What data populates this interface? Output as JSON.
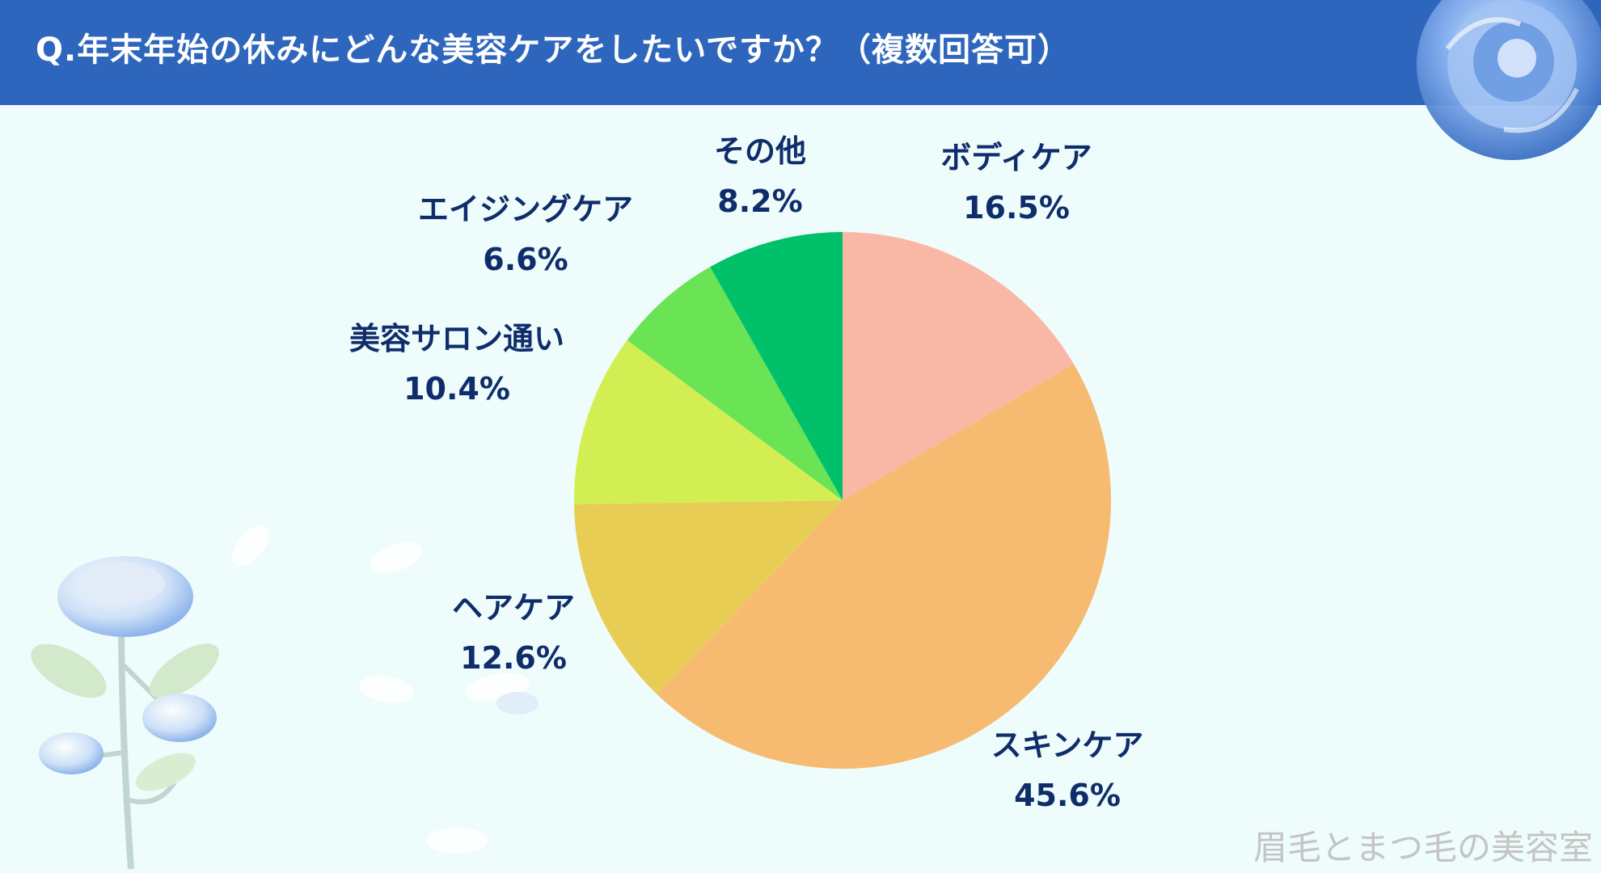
{
  "title": "Q.年末年始の休みにどんな美容ケアをしたいですか？（複数回答可）",
  "watermark": "眉毛とまつ毛の美容室",
  "colors": {
    "header": "#2f66bd",
    "background": "#eefcfb",
    "label": "#0f2d6b"
  },
  "chart_data": {
    "type": "pie",
    "title": "Q.年末年始の休みにどんな美容ケアをしたいですか？（複数回答可）",
    "slices": [
      {
        "label": "ボディケア",
        "value": 16.5,
        "display": "16.5%",
        "color": "#f9b7a5"
      },
      {
        "label": "スキンケア",
        "value": 45.6,
        "display": "45.6%",
        "color": "#f6bb70"
      },
      {
        "label": "ヘアケア",
        "value": 12.6,
        "display": "12.6%",
        "color": "#e8cd55"
      },
      {
        "label": "美容サロン通い",
        "value": 10.4,
        "display": "10.4%",
        "color": "#d2ee53"
      },
      {
        "label": "エイジングケア",
        "value": 6.6,
        "display": "6.6%",
        "color": "#6ae355"
      },
      {
        "label": "その他",
        "value": 8.2,
        "display": "8.2%",
        "color": "#00c16a"
      }
    ],
    "start_angle": "12 o'clock",
    "direction": "clockwise",
    "legend": "none"
  }
}
